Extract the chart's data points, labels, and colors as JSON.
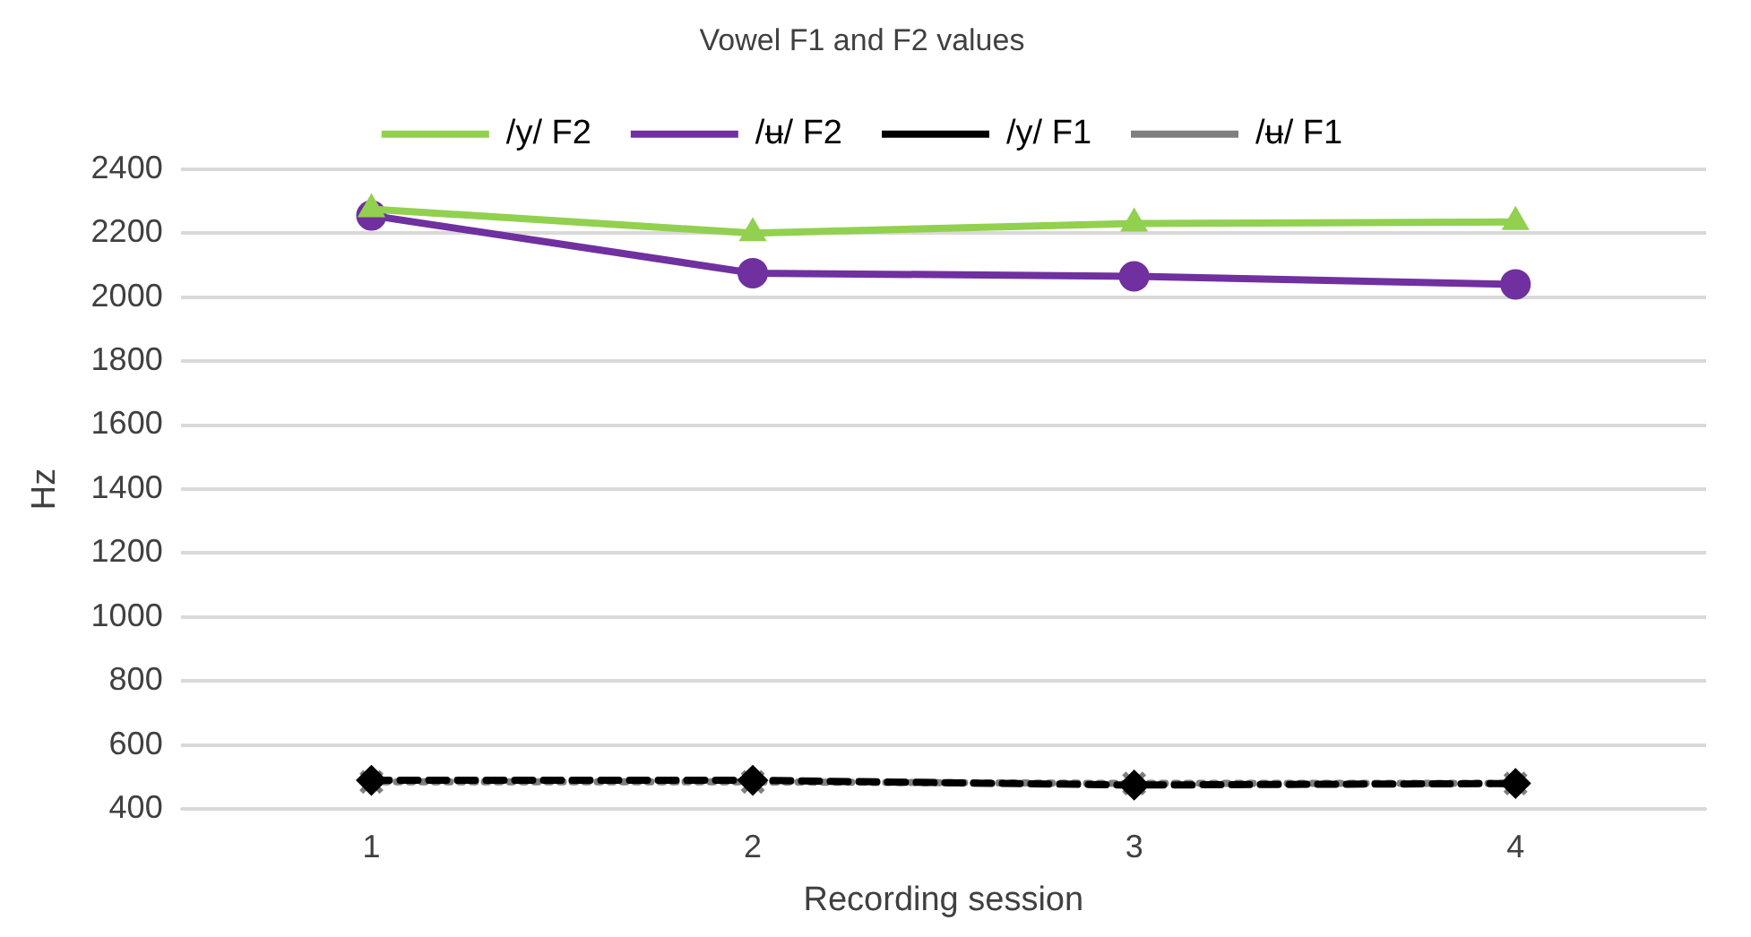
{
  "chart_data": {
    "type": "line",
    "title": "Vowel F1 and F2 values",
    "xlabel": "Recording session",
    "ylabel": "Hz",
    "categories": [
      "1",
      "2",
      "3",
      "4"
    ],
    "series": [
      {
        "name": "/y/ F2",
        "color": "#92d050",
        "values": [
          2275,
          2200,
          2230,
          2235
        ],
        "marker": "triangle",
        "line_style": "solid"
      },
      {
        "name": "/ʉ/ F2",
        "color": "#7030a0",
        "values": [
          2255,
          2075,
          2065,
          2040
        ],
        "marker": "circle",
        "line_style": "solid"
      },
      {
        "name": "/y/ F1",
        "color": "#000000",
        "values": [
          490,
          490,
          475,
          480
        ],
        "marker": "diamond",
        "line_style": "dashed"
      },
      {
        "name": "/ʉ/ F1",
        "color": "#7f7f7f",
        "values": [
          485,
          485,
          480,
          480
        ],
        "marker": "cross",
        "line_style": "dotted"
      }
    ],
    "ylim": [
      400,
      2400
    ],
    "yticks": [
      400,
      600,
      800,
      1000,
      1200,
      1400,
      1600,
      1800,
      2000,
      2200,
      2400
    ],
    "grid": "y",
    "legend": "top"
  }
}
